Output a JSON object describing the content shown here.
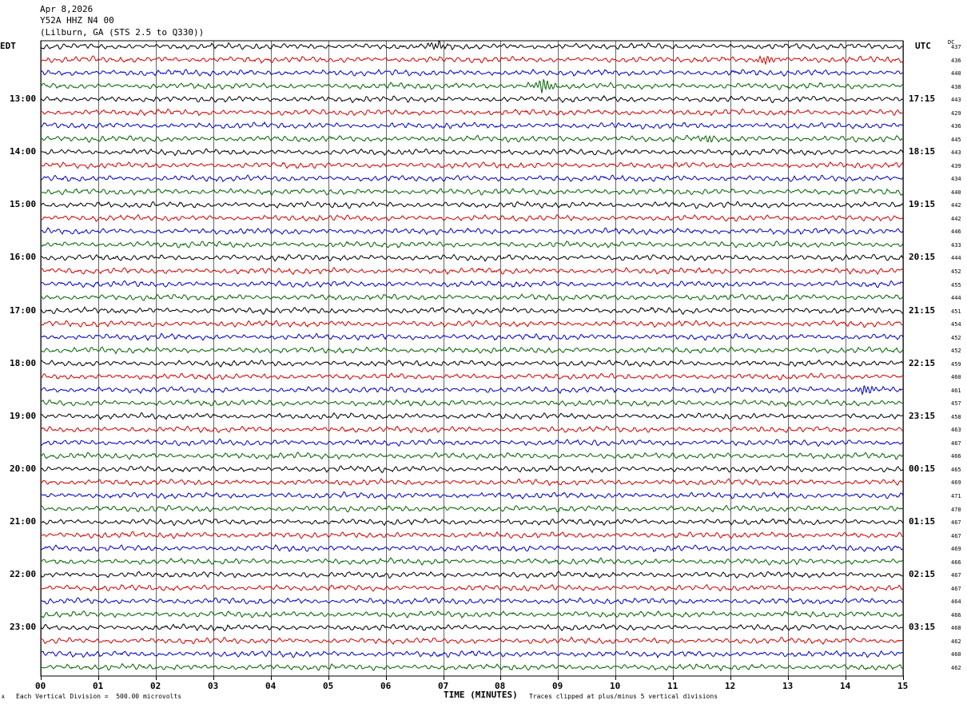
{
  "header": {
    "date": "Apr 8,2026",
    "station": "Y52A HHZ N4 00",
    "location": "(Lilburn, GA (STS 2.5 to Q330))"
  },
  "axes": {
    "left_label": "EDT",
    "right_label": "UTC",
    "dc_label": "DC",
    "xlabel": "TIME (MINUTES)"
  },
  "footer": {
    "scale_note": "Each Vertical Division =  500.00 microvolts",
    "clip_note": "Traces clipped at plus/minus 5 vertical divisions",
    "corner_mark": "A"
  },
  "colors": {
    "cycle": [
      "#000000",
      "#d40000",
      "#0000c8",
      "#006400"
    ],
    "grid": "#000000"
  },
  "chart_data": {
    "type": "line",
    "x_range_minutes": [
      0,
      15
    ],
    "x_ticks": [
      "00",
      "01",
      "02",
      "03",
      "04",
      "05",
      "06",
      "07",
      "08",
      "09",
      "10",
      "11",
      "12",
      "13",
      "14",
      "15"
    ],
    "left_time_labels": [
      "13:00",
      "14:00",
      "15:00",
      "16:00",
      "17:00",
      "18:00",
      "19:00",
      "20:00",
      "21:00",
      "22:00",
      "23:00"
    ],
    "right_time_labels": [
      "17:15",
      "18:15",
      "19:15",
      "20:15",
      "21:15",
      "22:15",
      "23:15",
      "00:15",
      "01:15",
      "02:15",
      "03:15"
    ],
    "traces_per_hour": 4,
    "trace_count": 48,
    "dc_offsets": [
      437,
      436,
      440,
      438,
      443,
      429,
      436,
      445,
      443,
      439,
      434,
      440,
      442,
      442,
      446,
      433,
      444,
      452,
      455,
      444,
      451,
      454,
      452,
      452,
      459,
      460,
      461,
      457,
      458,
      463,
      467,
      466,
      465,
      469,
      471,
      470,
      467,
      467,
      469,
      466,
      467,
      467,
      464,
      466,
      468,
      462,
      460,
      462
    ],
    "events": [
      {
        "trace": 0,
        "minute": 6.9,
        "amplitude": 1.6
      },
      {
        "trace": 1,
        "minute": 12.6,
        "amplitude": 1.8
      },
      {
        "trace": 3,
        "minute": 8.75,
        "amplitude": 2.8
      },
      {
        "trace": 7,
        "minute": 11.6,
        "amplitude": 1.3
      },
      {
        "trace": 26,
        "minute": 14.35,
        "amplitude": 2.0
      }
    ]
  }
}
